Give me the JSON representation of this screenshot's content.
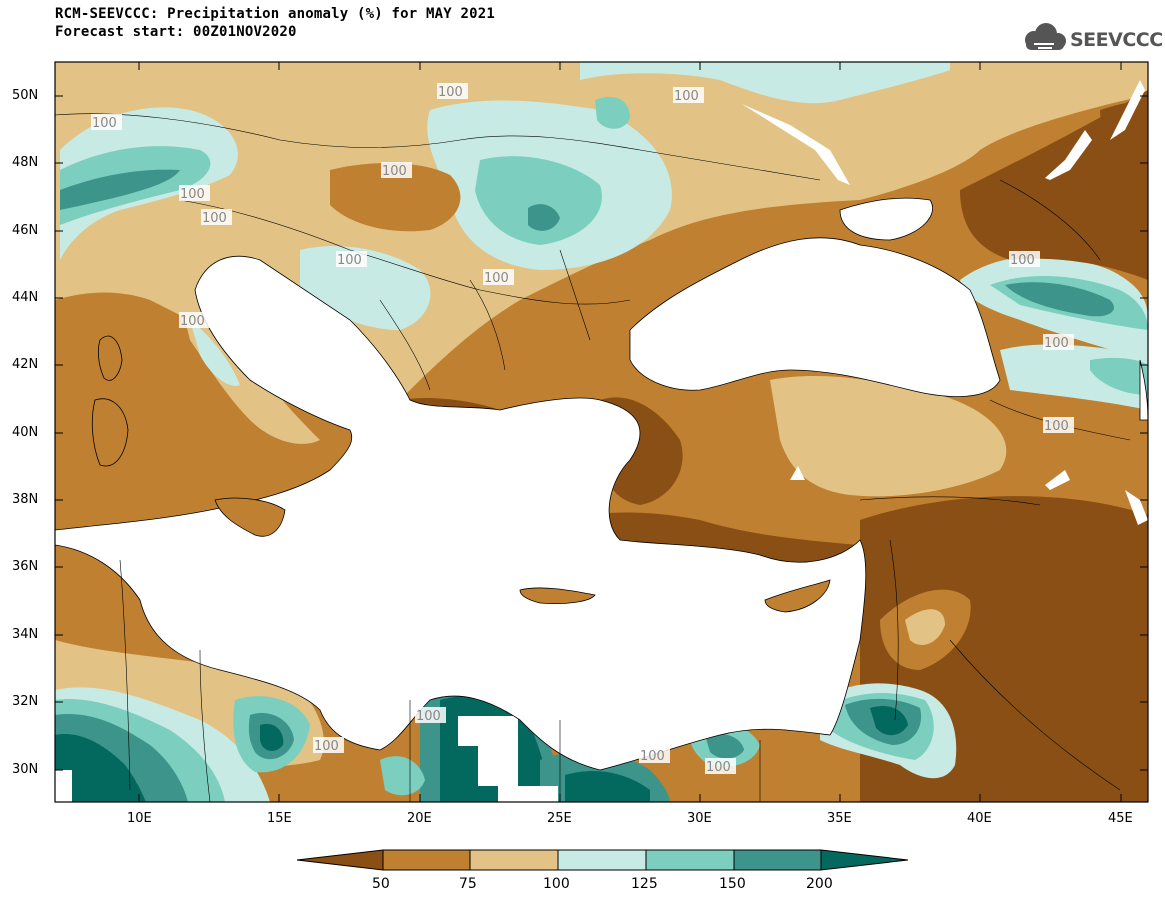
{
  "header": {
    "title": "RCM-SEEVCCC: Precipitation anomaly (%) for MAY 2021",
    "subtitle": "Forecast start: 00Z01NOV2020",
    "logo_text": "SEEVCCC"
  },
  "map": {
    "lat_labels": [
      "50N",
      "48N",
      "46N",
      "44N",
      "42N",
      "40N",
      "38N",
      "36N",
      "34N",
      "32N",
      "30N"
    ],
    "lon_labels": [
      "10E",
      "15E",
      "20E",
      "25E",
      "30E",
      "35E",
      "40E",
      "45E"
    ],
    "lon_range": [
      7,
      46
    ],
    "lat_range": [
      29,
      51
    ],
    "contour_labels": [
      "100",
      "100",
      "100",
      "100",
      "100",
      "100",
      "100",
      "100",
      "100",
      "100",
      "100",
      "100",
      "100",
      "100",
      "100",
      "100"
    ]
  },
  "legend": {
    "levels": [
      "50",
      "75",
      "100",
      "125",
      "150",
      "200"
    ],
    "colors": [
      "#8a4f14",
      "#bf8032",
      "#e3c385",
      "#c7ebe4",
      "#7ccfbf",
      "#3c948a",
      "#03695f"
    ]
  }
}
